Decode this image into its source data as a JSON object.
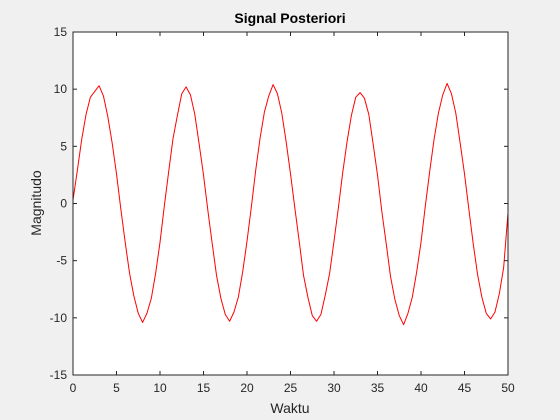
{
  "chart_data": {
    "type": "line",
    "title": "Signal Posteriori",
    "xlabel": "Waktu",
    "ylabel": "Magnitudo",
    "xlim": [
      0,
      50
    ],
    "ylim": [
      -15,
      15
    ],
    "xticks": [
      0,
      5,
      10,
      15,
      20,
      25,
      30,
      35,
      40,
      45,
      50
    ],
    "yticks": [
      -15,
      -10,
      -5,
      0,
      5,
      10,
      15
    ],
    "xtick_labels": [
      "0",
      "5",
      "10",
      "15",
      "20",
      "25",
      "30",
      "35",
      "40",
      "45",
      "50"
    ],
    "ytick_labels": [
      "-15",
      "-10",
      "-5",
      "0",
      "5",
      "10",
      "15"
    ],
    "grid": false,
    "series": [
      {
        "color": "#ff0000",
        "x": [
          0,
          0.5,
          1,
          1.5,
          2,
          2.5,
          3,
          3.5,
          4,
          4.5,
          5,
          5.5,
          6,
          6.5,
          7,
          7.5,
          8,
          8.5,
          9,
          9.5,
          10,
          10.5,
          11,
          11.5,
          12,
          12.5,
          13,
          13.5,
          14,
          14.5,
          15,
          15.5,
          16,
          16.5,
          17,
          17.5,
          18,
          18.5,
          19,
          19.5,
          20,
          20.5,
          21,
          21.5,
          22,
          22.5,
          23,
          23.5,
          24,
          24.5,
          25,
          25.5,
          26,
          26.5,
          27,
          27.5,
          28,
          28.5,
          29,
          29.5,
          30,
          30.5,
          31,
          31.5,
          32,
          32.5,
          33,
          33.5,
          34,
          34.5,
          35,
          35.5,
          36,
          36.5,
          37,
          37.5,
          38,
          38.5,
          39,
          39.5,
          40,
          40.5,
          41,
          41.5,
          42,
          42.5,
          43,
          43.5,
          44,
          44.5,
          45,
          45.5,
          46,
          46.5,
          47,
          47.5,
          48,
          48.5,
          49,
          49.5,
          50
        ],
        "y": [
          0.3,
          2.9,
          5.6,
          7.8,
          9.3,
          9.8,
          10.3,
          9.4,
          7.6,
          5.3,
          2.6,
          -0.5,
          -3.4,
          -6.1,
          -8.1,
          -9.6,
          -10.4,
          -9.6,
          -8.3,
          -6.1,
          -3.4,
          -0.2,
          2.8,
          5.7,
          7.7,
          9.6,
          10.2,
          9.5,
          7.8,
          5.2,
          2.5,
          -0.6,
          -3.5,
          -6.3,
          -8.3,
          -9.7,
          -10.3,
          -9.5,
          -8.2,
          -6.0,
          -3.3,
          -0.3,
          2.9,
          5.7,
          8.0,
          9.4,
          10.4,
          9.6,
          7.9,
          5.4,
          2.6,
          -0.4,
          -3.3,
          -6.3,
          -8.2,
          -9.8,
          -10.3,
          -9.7,
          -8.0,
          -6.1,
          -3.3,
          -0.4,
          2.7,
          5.4,
          7.7,
          9.3,
          9.7,
          9.2,
          7.8,
          5.2,
          2.5,
          -0.7,
          -3.5,
          -6.4,
          -8.4,
          -9.8,
          -10.6,
          -9.6,
          -8.2,
          -6.0,
          -3.4,
          -0.2,
          2.8,
          5.6,
          7.9,
          9.5,
          10.5,
          9.6,
          7.9,
          5.3,
          2.6,
          -0.5,
          -3.5,
          -6.2,
          -8.2,
          -9.6,
          -10.1,
          -9.5,
          -7.9,
          -5.6,
          -0.8
        ]
      }
    ]
  }
}
